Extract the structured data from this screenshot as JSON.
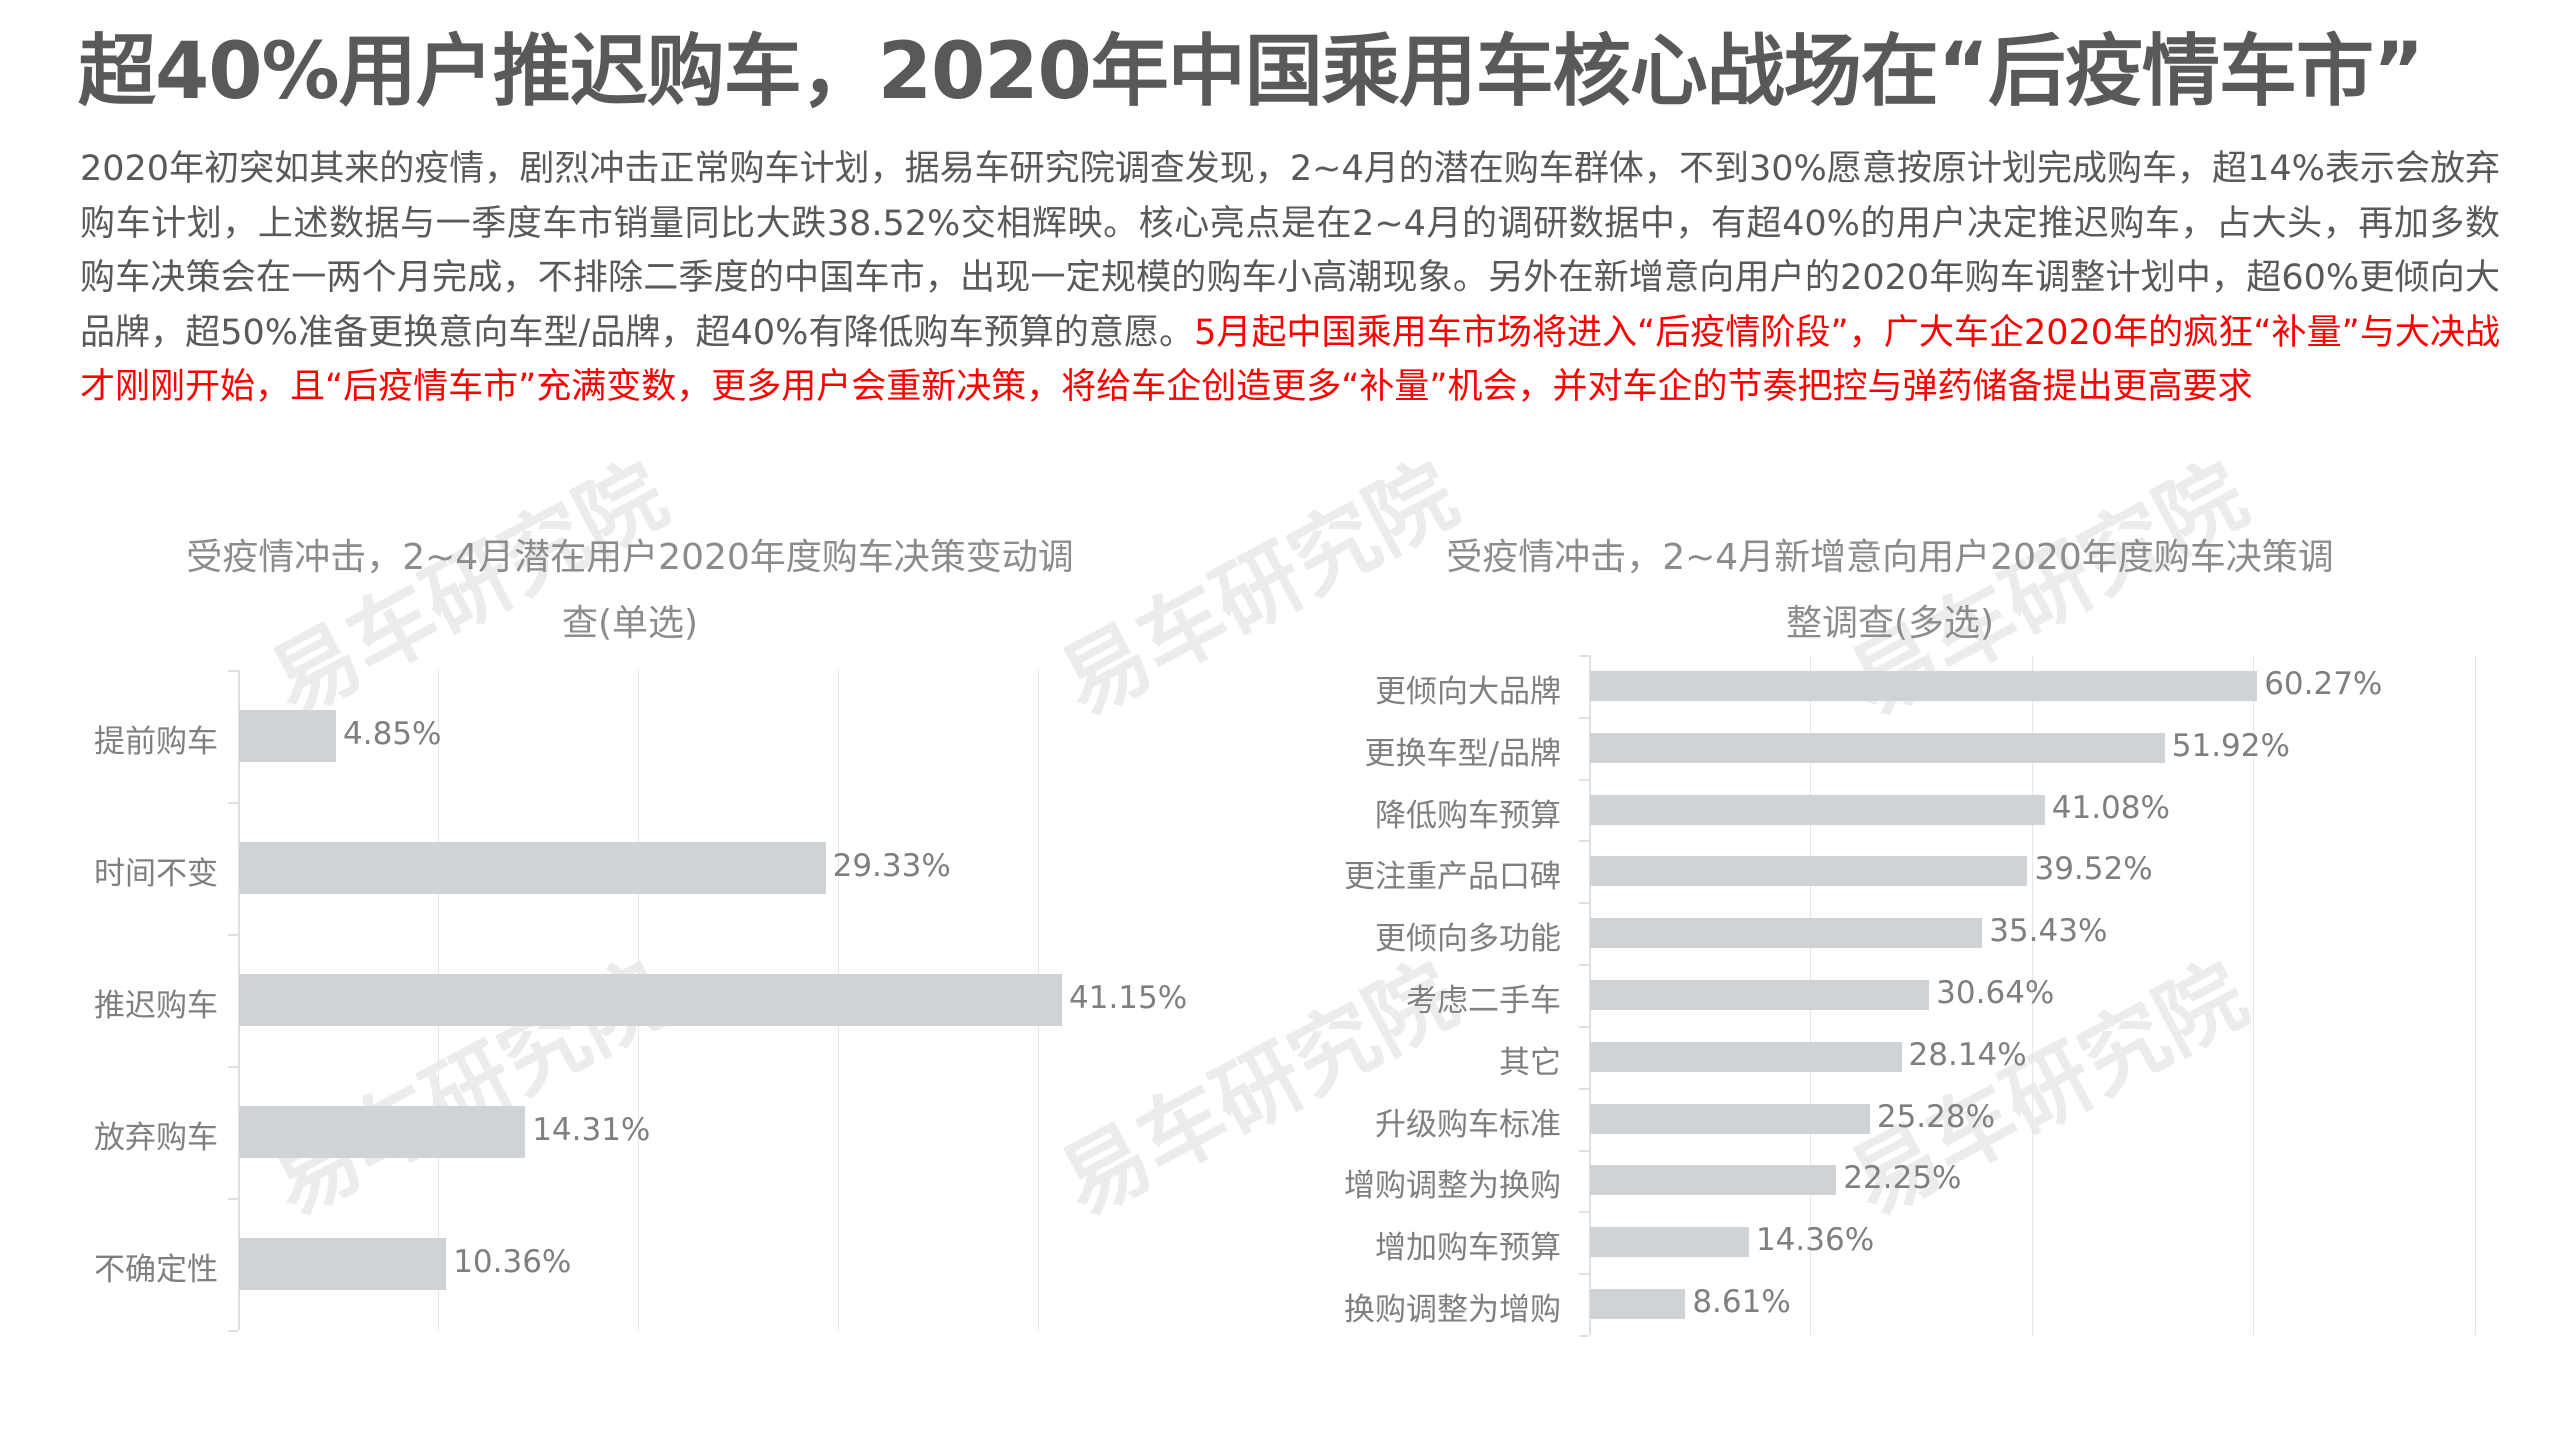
{
  "header": {
    "title": "超40%用户推迟购车，2020年中国乘用车核心战场在“后疫情车市”"
  },
  "summary": {
    "normal_text": "2020年初突如其来的疫情，剧烈冲击正常购车计划，据易车研究院调查发现，2~4月的潜在购车群体，不到30%愿意按原计划完成购车，超14%表示会放弃购车计划，上述数据与一季度车市销量同比大跌38.52%交相辉映。核心亮点是在2~4月的调研数据中，有超40%的用户决定推迟购车，占大头，再加多数购车决策会在一两个月完成，不排除二季度的中国车市，出现一定规模的购车小高潮现象。另外在新增意向用户的2020年购车调整计划中，超60%更倾向大品牌，超50%准备更换意向车型/品牌，超40%有降低购车预算的意愿。",
    "highlight_text": "5月起中国乘用车市场将进入“后疫情阶段”，广大车企2020年的疯狂“补量”与大决战才刚刚开始，且“后疫情车市”充满变数，更多用户会重新决策，将给车企创造更多“补量”机会，并对车企的节奏把控与弹药储备提出更高要求",
    "highlight_color": "#ff0000"
  },
  "watermark": {
    "text": "易车研究院"
  },
  "colors": {
    "bar": "#d0d3d6",
    "text_gray": "#7f7f7f",
    "title_gray": "#595959",
    "highlight_red": "#ff0000"
  },
  "chart_data": [
    {
      "type": "bar",
      "orientation": "horizontal",
      "title": "受疫情冲击，2~4月潜在用户2020年度购车决策变动调查(单选)",
      "title_line1": "受疫情冲击，2~4月潜在用户2020年度购车决策变动调",
      "title_line2": "查(单选)",
      "categories": [
        "提前购车",
        "时间不变",
        "推迟购车",
        "放弃购车",
        "不确定性"
      ],
      "values": [
        4.85,
        29.33,
        41.15,
        14.31,
        10.36
      ],
      "labels": [
        "4.85%",
        "29.33%",
        "41.15%",
        "14.31%",
        "10.36%"
      ],
      "xlabel": "",
      "ylabel": "",
      "xlim": [
        0,
        45
      ],
      "grid": true,
      "gridline_step": 10,
      "legend": "none"
    },
    {
      "type": "bar",
      "orientation": "horizontal",
      "title": "受疫情冲击，2~4月新增意向用户2020年度购车决策调整调查(多选)",
      "title_line1": "受疫情冲击，2~4月新增意向用户2020年度购车决策调",
      "title_line2": "整调查(多选)",
      "categories": [
        "更倾向大品牌",
        "更换车型/品牌",
        "降低购车预算",
        "更注重产品口碑",
        "更倾向多功能",
        "考虑二手车",
        "其它",
        "升级购车标准",
        "增购调整为换购",
        "增加购车预算",
        "换购调整为增购"
      ],
      "values": [
        60.27,
        51.92,
        41.08,
        39.52,
        35.43,
        30.64,
        28.14,
        25.28,
        22.25,
        14.36,
        8.61
      ],
      "labels": [
        "60.27%",
        "51.92%",
        "41.08%",
        "39.52%",
        "35.43%",
        "30.64%",
        "28.14%",
        "25.28%",
        "22.25%",
        "14.36%",
        "8.61%"
      ],
      "xlabel": "",
      "ylabel": "",
      "xlim": [
        0,
        85
      ],
      "grid": true,
      "gridline_step": 20,
      "legend": "none"
    }
  ]
}
